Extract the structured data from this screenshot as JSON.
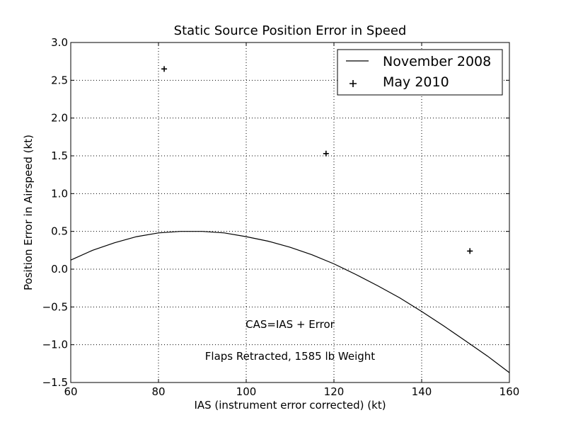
{
  "chart_data": {
    "type": "line",
    "title": "Static Source Position Error in Speed",
    "xlabel": "IAS (instrument error corrected) (kt)",
    "ylabel": "Position Error in Airspeed (kt)",
    "xlim": [
      60,
      160
    ],
    "ylim": [
      -1.5,
      3.0
    ],
    "xticks": [
      60,
      80,
      100,
      120,
      140,
      160
    ],
    "xtick_labels": [
      "60",
      "80",
      "100",
      "120",
      "140",
      "160"
    ],
    "yticks": [
      -1.5,
      -1.0,
      -0.5,
      0.0,
      0.5,
      1.0,
      1.5,
      2.0,
      2.5,
      3.0
    ],
    "ytick_labels": [
      "−1.5",
      "−1.0",
      "−0.5",
      "0.0",
      "0.5",
      "1.0",
      "1.5",
      "2.0",
      "2.5",
      "3.0"
    ],
    "grid": true,
    "legend_position": "top-right",
    "series": [
      {
        "name": "November 2008",
        "kind": "line",
        "color": "#000000",
        "x": [
          60,
          65,
          70,
          75,
          80,
          85,
          88,
          90,
          95,
          100,
          105,
          110,
          115,
          120,
          125,
          130,
          135,
          140,
          145,
          150,
          155,
          160
        ],
        "y": [
          0.12,
          0.25,
          0.35,
          0.43,
          0.48,
          0.5,
          0.5,
          0.5,
          0.48,
          0.43,
          0.37,
          0.29,
          0.19,
          0.07,
          -0.07,
          -0.22,
          -0.38,
          -0.56,
          -0.75,
          -0.95,
          -1.15,
          -1.37
        ]
      },
      {
        "name": "May 2010",
        "kind": "scatter",
        "marker": "+",
        "color": "#000000",
        "x": [
          81.3,
          118.2,
          151.0
        ],
        "y": [
          2.65,
          1.53,
          0.24
        ]
      }
    ],
    "annotations": [
      {
        "text": "CAS=IAS + Error",
        "x": 110,
        "y": -0.78
      },
      {
        "text": "Flaps Retracted, 1585 lb Weight",
        "x": 110,
        "y": -1.2
      }
    ]
  }
}
